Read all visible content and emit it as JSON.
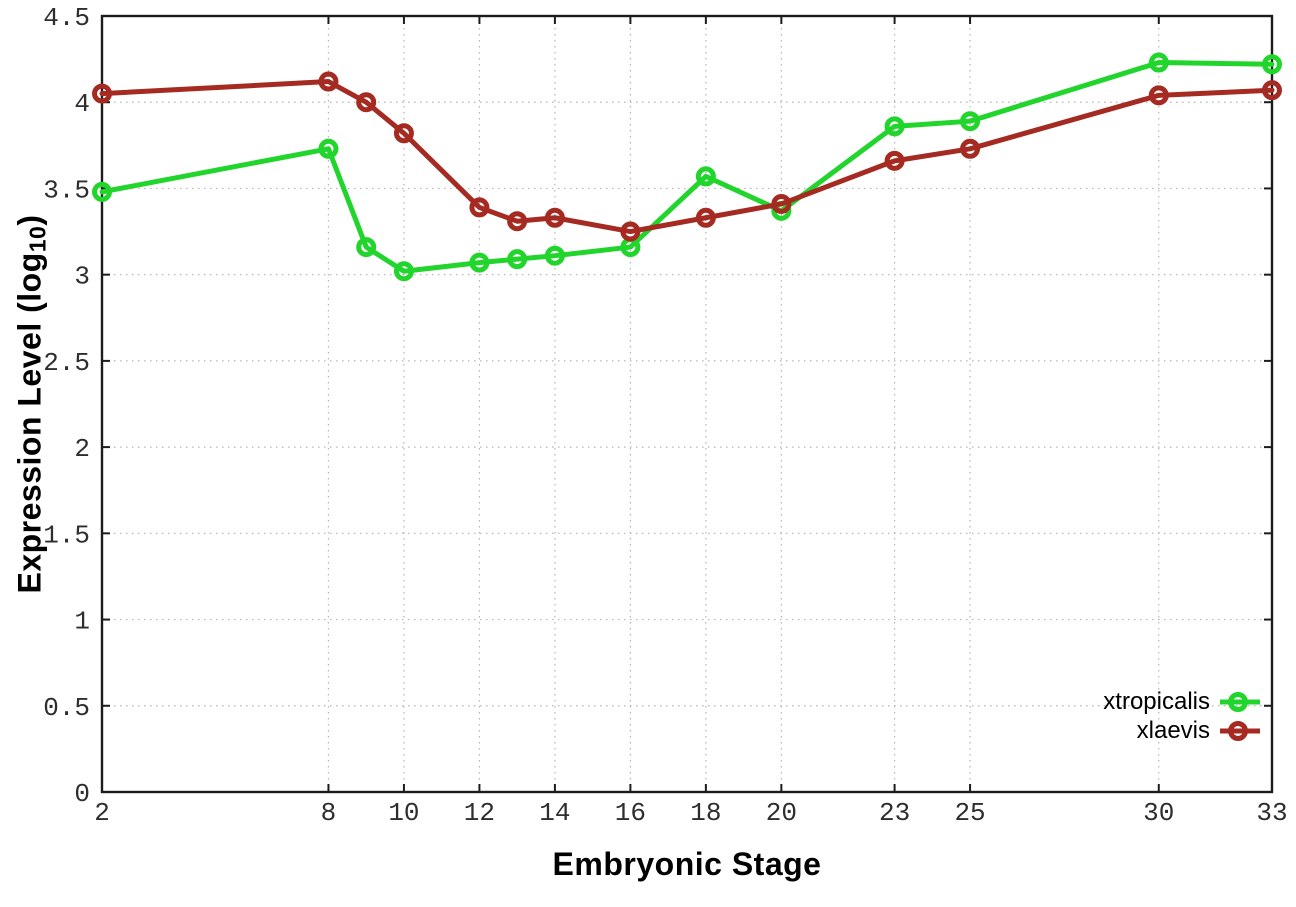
{
  "figure": {
    "background": "#ffffff",
    "border_color": "#1c1c1c",
    "grid_color": "#b4b4b4",
    "tick_label_color": "#2e2e2e"
  },
  "chart_data": {
    "type": "line",
    "title": "",
    "xlabel": "Embryonic Stage",
    "ylabel": {
      "main": "Expression Level (log",
      "sub": "10",
      "close": ")"
    },
    "xlim": [
      2,
      33
    ],
    "ylim": [
      0,
      4.5
    ],
    "grid": true,
    "legend_position": "inside-bottom-right",
    "x_tick_values": [
      2,
      8,
      10,
      12,
      14,
      16,
      18,
      20,
      23,
      25,
      30,
      33
    ],
    "x_tick_labels": [
      "2",
      "8",
      "10",
      "12",
      "14",
      "16",
      "18",
      "20",
      "23",
      "25",
      "30",
      "33"
    ],
    "y_tick_values": [
      0,
      0.5,
      1,
      1.5,
      2,
      2.5,
      3,
      3.5,
      4,
      4.5
    ],
    "y_tick_labels": [
      "0",
      "0.5",
      "1",
      "1.5",
      "2",
      "2.5",
      "3",
      "3.5",
      "4",
      "4.5"
    ],
    "x": [
      2,
      8,
      9,
      10,
      12,
      13,
      14,
      16,
      18,
      20,
      23,
      25,
      30,
      33
    ],
    "series": [
      {
        "name": "xtropicalis",
        "color": "#22d52c",
        "values": [
          3.48,
          3.73,
          3.16,
          3.02,
          3.07,
          3.09,
          3.11,
          3.16,
          3.57,
          3.37,
          3.86,
          3.89,
          4.23,
          4.22
        ]
      },
      {
        "name": "xlaevis",
        "color": "#a52a22",
        "values": [
          4.05,
          4.12,
          4.0,
          3.82,
          3.39,
          3.31,
          3.33,
          3.25,
          3.33,
          3.41,
          3.66,
          3.73,
          4.04,
          4.07
        ]
      }
    ]
  }
}
